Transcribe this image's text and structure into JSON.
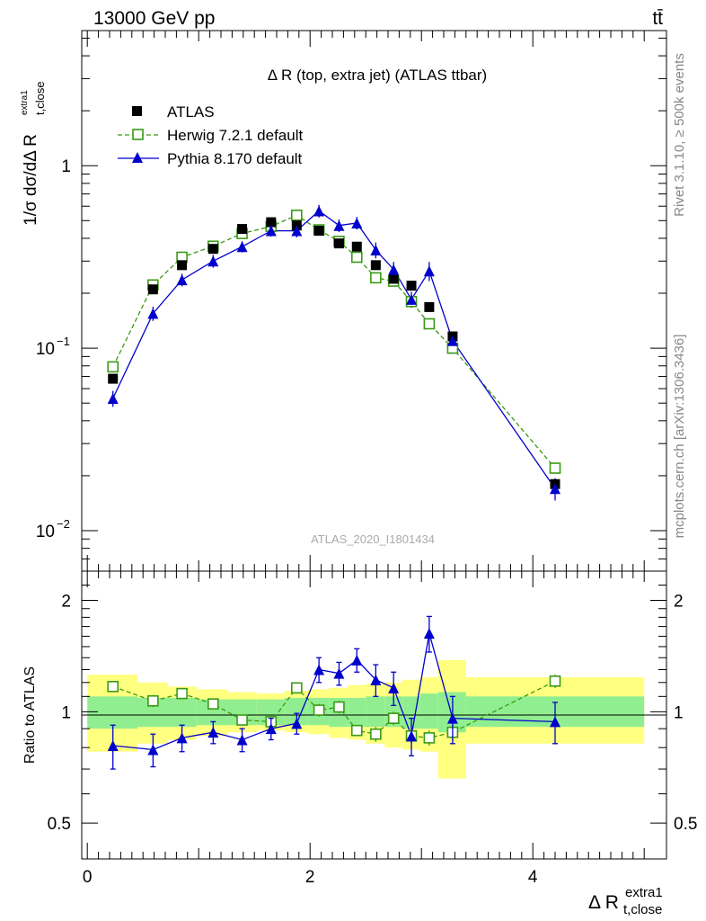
{
  "header": {
    "left": "13000 GeV pp",
    "right": "tt̄"
  },
  "side_labels": {
    "rivet": "Rivet 3.1.10, ≥ 500k events",
    "mcplots": "mcplots.cern.ch [arXiv:1306.3436]"
  },
  "chart_data": [
    {
      "type": "scatter",
      "panel": "main",
      "title": "Δ R (top, extra jet) (ATLAS ttbar)",
      "watermark": "ATLAS_2020_I1801434",
      "ylabel": "1/σ dσ/dΔR_{t,close}^{extra1}",
      "yscale": "log",
      "ylim": [
        0.006,
        5.5
      ],
      "xlim": [
        -0.05,
        5.2
      ],
      "y_tick_labels": [
        "10^-2",
        "10^-1",
        "1"
      ],
      "legend_position": "top-left",
      "series": [
        {
          "name": "ATLAS",
          "marker": "filled-square",
          "color": "#000000",
          "x": [
            0.23,
            0.59,
            0.85,
            1.13,
            1.39,
            1.65,
            1.88,
            2.08,
            2.26,
            2.42,
            2.59,
            2.75,
            2.91,
            3.07,
            3.28,
            4.2
          ],
          "y": [
            0.068,
            0.21,
            0.285,
            0.35,
            0.45,
            0.49,
            0.47,
            0.44,
            0.375,
            0.36,
            0.285,
            0.24,
            0.22,
            0.168,
            0.116,
            0.018
          ]
        },
        {
          "name": "Herwig 7.2.1 default",
          "marker": "open-square",
          "line": "dashed",
          "color": "#3a9a14",
          "x": [
            0.23,
            0.59,
            0.85,
            1.13,
            1.39,
            1.65,
            1.88,
            2.08,
            2.26,
            2.42,
            2.59,
            2.75,
            2.91,
            3.07,
            3.28,
            4.2
          ],
          "y": [
            0.079,
            0.222,
            0.315,
            0.362,
            0.425,
            0.465,
            0.535,
            0.445,
            0.385,
            0.315,
            0.243,
            0.233,
            0.18,
            0.136,
            0.1,
            0.022
          ]
        },
        {
          "name": "Pythia 8.170 default",
          "marker": "filled-triangle",
          "line": "solid",
          "color": "#0000cc",
          "x": [
            0.23,
            0.59,
            0.85,
            1.13,
            1.39,
            1.65,
            1.88,
            2.08,
            2.26,
            2.42,
            2.59,
            2.75,
            2.91,
            3.07,
            3.28,
            4.2
          ],
          "y": [
            0.053,
            0.155,
            0.237,
            0.3,
            0.36,
            0.44,
            0.44,
            0.565,
            0.47,
            0.485,
            0.345,
            0.27,
            0.185,
            0.265,
            0.11,
            0.017
          ]
        }
      ]
    },
    {
      "type": "scatter",
      "panel": "ratio",
      "ylabel": "Ratio to ATLAS",
      "xlabel": "Δ R_{t,close}^{extra1}",
      "ylim": [
        0.4,
        2.4
      ],
      "xlim": [
        -0.05,
        5.2
      ],
      "x_tick_labels": [
        "0",
        "2",
        "4"
      ],
      "y_tick_labels": [
        "0.5",
        "1",
        "2"
      ],
      "bands": {
        "bins": [
          [
            0.0,
            0.45
          ],
          [
            0.45,
            0.72
          ],
          [
            0.72,
            0.98
          ],
          [
            0.98,
            1.26
          ],
          [
            1.26,
            1.52
          ],
          [
            1.52,
            1.77
          ],
          [
            1.77,
            1.98
          ],
          [
            1.98,
            2.17
          ],
          [
            2.17,
            2.34
          ],
          [
            2.34,
            2.5
          ],
          [
            2.5,
            2.67
          ],
          [
            2.67,
            2.83
          ],
          [
            2.83,
            2.99
          ],
          [
            2.99,
            3.15
          ],
          [
            3.15,
            3.4
          ],
          [
            3.4,
            5.0
          ]
        ],
        "stat": [
          [
            0.9,
            1.1
          ],
          [
            0.91,
            1.09
          ],
          [
            0.91,
            1.09
          ],
          [
            0.92,
            1.08
          ],
          [
            0.92,
            1.08
          ],
          [
            0.92,
            1.08
          ],
          [
            0.92,
            1.09
          ],
          [
            0.92,
            1.09
          ],
          [
            0.91,
            1.09
          ],
          [
            0.91,
            1.09
          ],
          [
            0.91,
            1.1
          ],
          [
            0.91,
            1.1
          ],
          [
            0.9,
            1.1
          ],
          [
            0.9,
            1.12
          ],
          [
            0.88,
            1.13
          ],
          [
            0.91,
            1.1
          ]
        ],
        "total": [
          [
            0.78,
            1.26
          ],
          [
            0.82,
            1.2
          ],
          [
            0.84,
            1.17
          ],
          [
            0.86,
            1.15
          ],
          [
            0.88,
            1.13
          ],
          [
            0.89,
            1.12
          ],
          [
            0.88,
            1.14
          ],
          [
            0.87,
            1.15
          ],
          [
            0.85,
            1.16
          ],
          [
            0.84,
            1.18
          ],
          [
            0.82,
            1.19
          ],
          [
            0.8,
            1.2
          ],
          [
            0.79,
            1.22
          ],
          [
            0.78,
            1.24
          ],
          [
            0.66,
            1.38
          ],
          [
            0.82,
            1.24
          ]
        ],
        "stat_color": "#90ee90",
        "total_color": "#ffff80"
      },
      "series": [
        {
          "name": "Herwig 7.2.1 default",
          "x": [
            0.23,
            0.59,
            0.85,
            1.13,
            1.39,
            1.65,
            1.88,
            2.08,
            2.26,
            2.42,
            2.59,
            2.75,
            2.91,
            3.07,
            3.28,
            4.2
          ],
          "y": [
            1.17,
            1.07,
            1.12,
            1.05,
            0.95,
            0.94,
            1.16,
            1.01,
            1.03,
            0.89,
            0.87,
            0.96,
            0.86,
            0.85,
            0.88,
            1.21
          ],
          "err": [
            0.04,
            0.04,
            0.03,
            0.03,
            0.03,
            0.03,
            0.04,
            0.04,
            0.04,
            0.03,
            0.04,
            0.04,
            0.04,
            0.04,
            0.04,
            0.05
          ]
        },
        {
          "name": "Pythia 8.170 default",
          "x": [
            0.23,
            0.59,
            0.85,
            1.13,
            1.39,
            1.65,
            1.88,
            2.08,
            2.26,
            2.42,
            2.59,
            2.75,
            2.91,
            3.07,
            3.28,
            4.2
          ],
          "y": [
            0.81,
            0.79,
            0.85,
            0.88,
            0.84,
            0.9,
            0.93,
            1.3,
            1.27,
            1.38,
            1.22,
            1.16,
            0.86,
            1.63,
            0.96,
            0.94
          ],
          "err": [
            0.11,
            0.08,
            0.07,
            0.06,
            0.06,
            0.06,
            0.06,
            0.1,
            0.09,
            0.1,
            0.12,
            0.12,
            0.1,
            0.18,
            0.14,
            0.12
          ]
        }
      ]
    }
  ]
}
